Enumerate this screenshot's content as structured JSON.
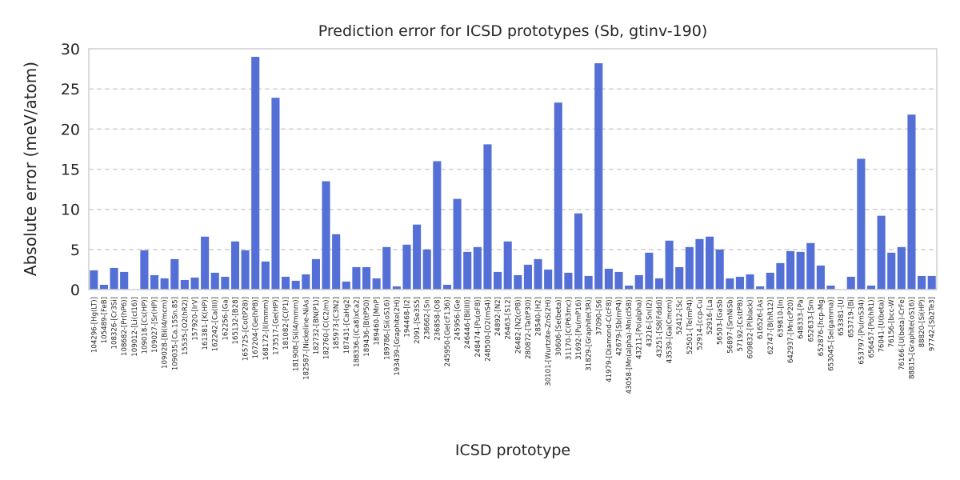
{
  "chart_data": {
    "type": "bar",
    "title": "Prediction error for ICSD prototypes (Sb, gtinv-190)",
    "xlabel": "ICSD prototype",
    "ylabel": "Absolute error (meV/atom)",
    "ylim": [
      0,
      30
    ],
    "yticks": [
      0,
      5,
      10,
      15,
      20,
      25,
      30
    ],
    "grid": "y-dashed",
    "bar_color": "#5470d6",
    "categories": [
      "104296-[Hg(LT)]",
      "105489-[FeB]",
      "108326-[Cr3Si]",
      "108682-[Pr(hP6)]",
      "109012-[Li(cI16)]",
      "109018-[Cs(HP)]",
      "109027-[Sr(HP)]",
      "109028-[Bi(I4/mcm)]",
      "109035-[Ca.15Sn.85]",
      "15535-[O2(hR2)]",
      "157920-[IrV]",
      "161381-[K(HP)]",
      "162242-[Ca(III)]",
      "162256-[Ga]",
      "165132-[B28]",
      "165725-[Co(tP28)]",
      "167204-[Ge(hP8)]",
      "168172-[I(Immm)]",
      "173517-[Ge(HP)]",
      "181082-[C(P1)]",
      "181908-[Si(I4/mmm)]",
      "182587-[Nickeline-NiAs]",
      "182732-[BN(P1)]",
      "182760-[C(C2/m)]",
      "185973-[C3N2]",
      "187431-[CaHg2]",
      "188336-[(Ca8)xCa2]",
      "189436-[B(tP50)]",
      "189460-[MnP]",
      "189786-[Si(oS16)]",
      "193439-[Graphite(2H)]",
      "194468-[I2]",
      "2091-[Se3S5]",
      "236662-[Sn]",
      "236858-[O8]",
      "245950-[Ge(cF136)]",
      "245956-[Ge]",
      "246446-[Bi(III)]",
      "248474-[Pu(oF8)]",
      "248500-[O2(mS4)]",
      "24892-[N2]",
      "26463-[S12]",
      "26482-[N2(cP8)]",
      "280872-[Ta(tP30)]",
      "28540-[H2]",
      "30101-[Wurtzite-ZnS(2H)]",
      "30606-[Se(beta)]",
      "31170-[C(P63mc)]",
      "31692-[Pu(mP16)]",
      "31829-[Graphite(3R)]",
      "37090-[S6]",
      "41979-[Diamond-C(cF8)]",
      "42679-[Sb(mP4)]",
      "43058-[Mn(alpha)-Mn(cI58)]",
      "43211-[Po(alpha)]",
      "43216-[Sn(I2)]",
      "43251-[S8(Fddd)]",
      "43539-[Ga(Cmcm)]",
      "52412-[Sc]",
      "52501-[Te(mP4)]",
      "52914-[ccp-Cu]",
      "52916-[La]",
      "56503-[GaSb]",
      "56897-[SmNiSb]",
      "57192-[Cs(tP8)]",
      "609832-[P(black)]",
      "616526-[As]",
      "62747-[B(hR12)]",
      "639810-[In]",
      "642937-[Mn(cP20)]",
      "648333-[Pa]",
      "652633-[Sm]",
      "652876-[hcp-Mg]",
      "653045-[Se(gamma)]",
      "653381-[U]",
      "653719-[Bi]",
      "653797-[Pu(mS34)]",
      "656457-[Po(hR1)]",
      "76041-[U(beta)]",
      "76156-[bcc-W]",
      "76166-[U(beta)-CrFe]",
      "88815-[Graphite(oS16)]",
      "88820-[Si(HP)]",
      "97742-[Sb2Te3]"
    ],
    "values": [
      2.4,
      0.6,
      2.7,
      2.2,
      0.0,
      4.9,
      1.8,
      1.4,
      3.8,
      1.2,
      1.5,
      6.6,
      2.1,
      1.6,
      6.0,
      4.9,
      29.0,
      3.5,
      23.9,
      1.6,
      1.1,
      1.9,
      3.8,
      13.5,
      6.9,
      1.0,
      2.8,
      2.8,
      1.4,
      5.3,
      0.4,
      5.6,
      8.1,
      5.0,
      16.0,
      0.6,
      11.3,
      4.7,
      5.3,
      18.1,
      2.2,
      6.0,
      1.8,
      3.1,
      3.8,
      2.5,
      23.3,
      2.1,
      9.5,
      1.7,
      28.2,
      2.6,
      2.2,
      0.5,
      1.8,
      4.6,
      1.4,
      6.1,
      2.8,
      5.3,
      6.3,
      6.6,
      5.0,
      1.4,
      1.6,
      1.9,
      0.4,
      2.1,
      3.3,
      4.8,
      4.7,
      5.8,
      3.0,
      0.5,
      0.0,
      1.6,
      16.3,
      0.5,
      9.2,
      4.6,
      5.3,
      21.8,
      1.7,
      1.7
    ]
  }
}
